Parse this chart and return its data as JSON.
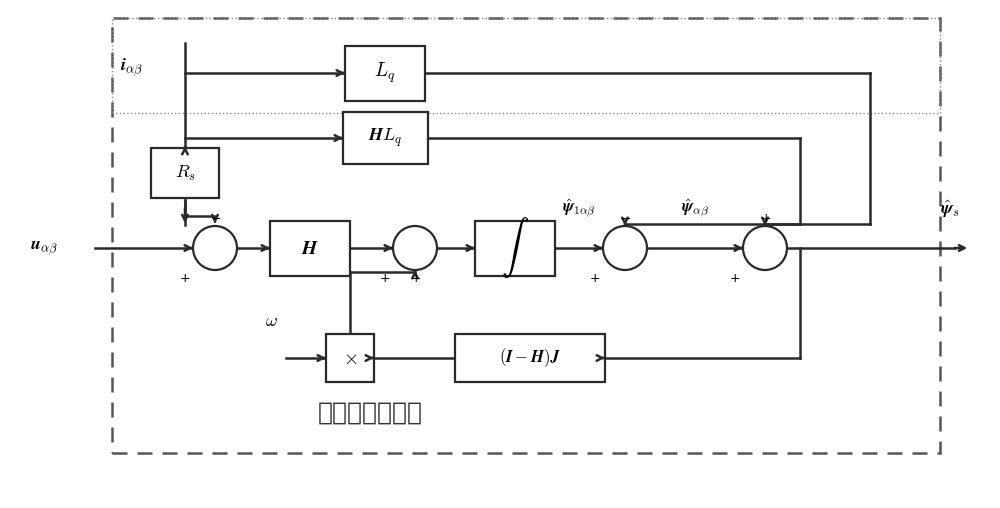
{
  "bg": "#ffffff",
  "lc": "#2a2a2a",
  "lw": 1.5,
  "label_iab": "$\\boldsymbol{i}_{\\alpha\\beta}$",
  "label_uab": "$\\boldsymbol{u}_{\\alpha\\beta}$",
  "label_Lq": "$L_q$",
  "label_HLq": "$\\boldsymbol{H}L_q$",
  "label_Rs": "$R_s$",
  "label_H": "$\\boldsymbol{H}$",
  "label_int": "$\\int$",
  "label_IHJ": "$(\\boldsymbol{I}-\\boldsymbol{H})\\boldsymbol{J}$",
  "label_psi1ab": "$\\hat{\\boldsymbol{\\psi}}_{1\\alpha\\beta}$",
  "label_psiab": "$\\hat{\\boldsymbol{\\psi}}_{\\alpha\\beta}$",
  "label_psis": "$\\hat{\\boldsymbol{\\psi}}_s$",
  "label_omega": "$\\omega$",
  "label_observer": "扩展磁链观测器",
  "label_x": "$\\times$"
}
